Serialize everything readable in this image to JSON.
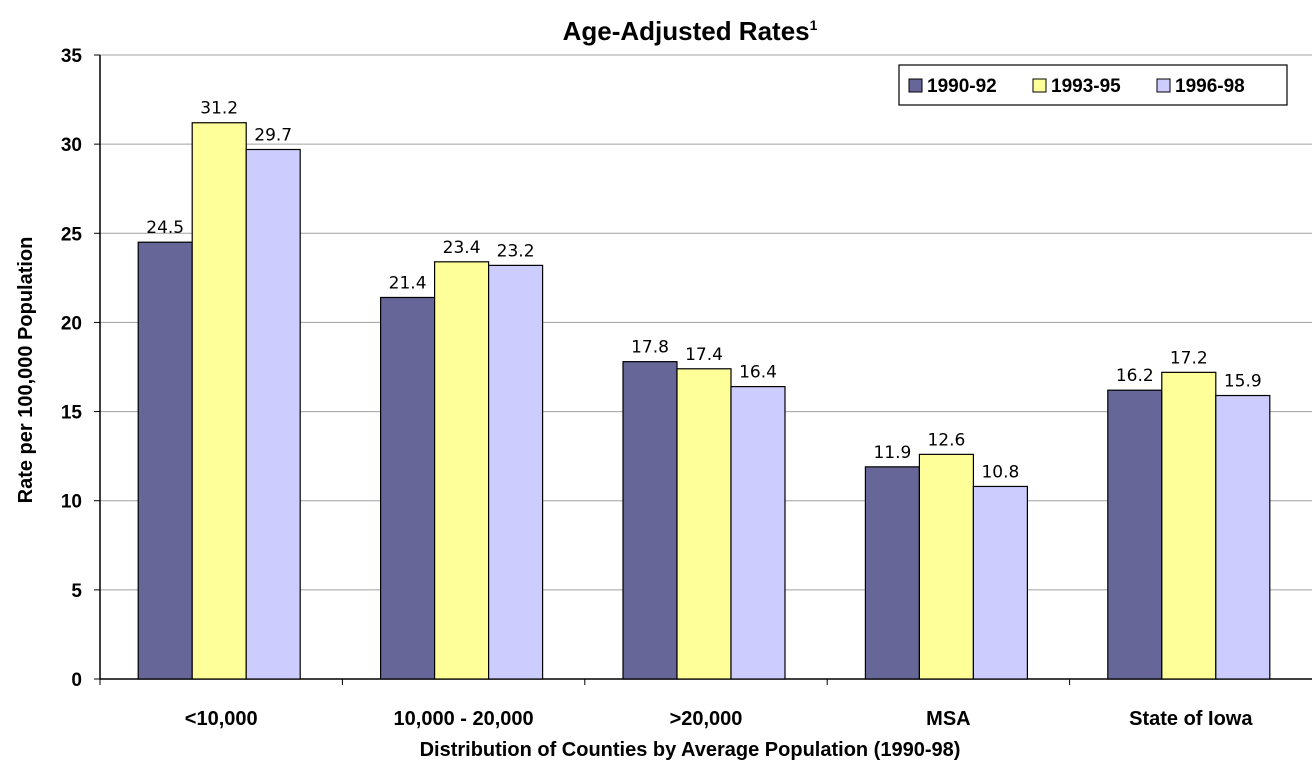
{
  "chart_data": {
    "type": "bar",
    "title": "Age-Adjusted Rates",
    "title_superscript": "1",
    "xlabel": "Distribution of Counties by Average Population (1990-98)",
    "ylabel": "Rate per 100,000 Population",
    "categories": [
      "<10,000",
      "10,000 - 20,000",
      ">20,000",
      "MSA",
      "State of Iowa"
    ],
    "series": [
      {
        "name": "1990-92",
        "color": "#666699",
        "values": [
          24.5,
          21.4,
          17.8,
          11.9,
          16.2
        ],
        "labels": [
          "24.5",
          "21.4",
          "17.8",
          "11.9",
          "16.2"
        ]
      },
      {
        "name": "1993-95",
        "color": "#ffff99",
        "values": [
          31.2,
          23.4,
          17.4,
          12.6,
          17.2
        ],
        "labels": [
          "31.2",
          "23.4",
          "17.4",
          "12.6",
          "17.2"
        ]
      },
      {
        "name": "1996-98",
        "color": "#ccccff",
        "values": [
          29.7,
          23.2,
          16.4,
          10.8,
          15.9
        ],
        "labels": [
          "29.7",
          "23.2",
          "16.4",
          "10.8",
          "15.9"
        ]
      }
    ],
    "ylim": [
      0,
      35
    ],
    "yticks": [
      0,
      5,
      10,
      15,
      20,
      25,
      30,
      35
    ],
    "ytick_labels": [
      "0",
      "5",
      "10",
      "15",
      "20",
      "25",
      "30",
      "35"
    ],
    "grid": true,
    "legend_position": "top-right"
  }
}
